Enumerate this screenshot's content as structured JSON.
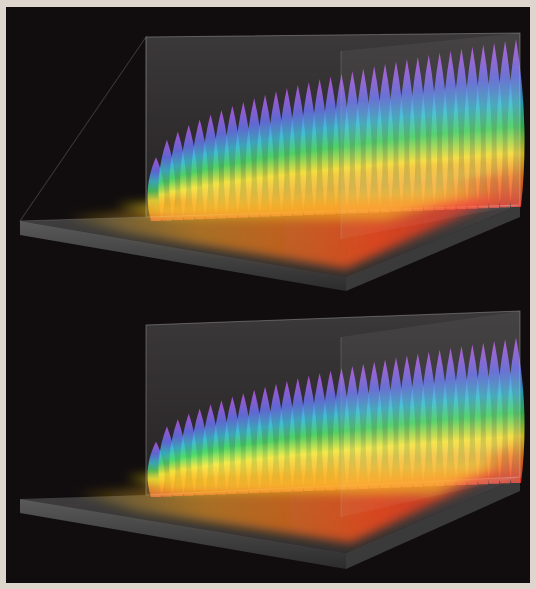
{
  "figure": {
    "description_text": "",
    "panels": [
      {
        "id": "upper",
        "color_bands": [
          "#ff3b1e",
          "#ff8a14",
          "#ffe21a",
          "#27d24a",
          "#1bb7d8",
          "#3d63ff",
          "#c13cff"
        ]
      },
      {
        "id": "lower",
        "color_bands": [
          "#ff3b1e",
          "#ff8a14",
          "#ffe21a",
          "#27d24a",
          "#1bb7d8",
          "#3d63ff",
          "#c13cff"
        ]
      }
    ],
    "background_color": "#110d0e",
    "frame_color": "#ded6cc",
    "box_color": "#9a9a9a"
  }
}
